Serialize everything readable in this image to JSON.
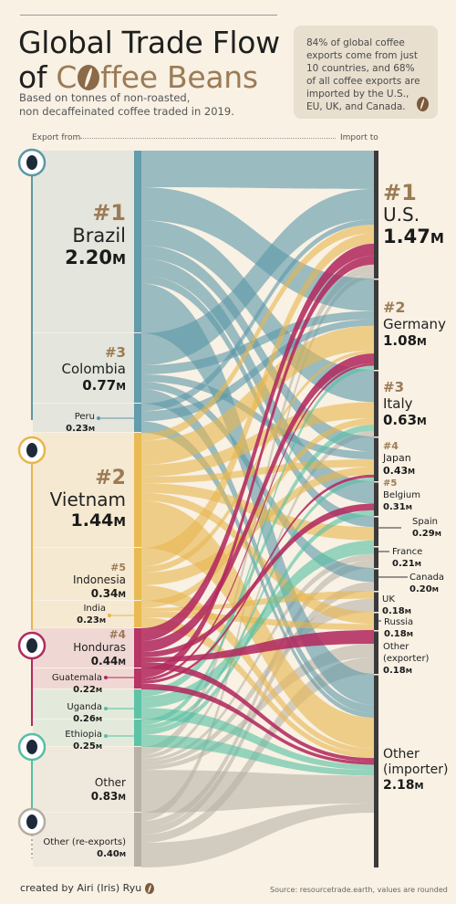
{
  "title": {
    "line1": "Global Trade Flow",
    "line2_prefix": "of ",
    "line2_accent_start": "C",
    "line2_accent_rest": "ffee Beans"
  },
  "subtitle": {
    "line1": "Based on tonnes of non-roasted,",
    "line2": "non decaffeinated coffee traded in 2019."
  },
  "infobox": {
    "text": "84% of global coffee exports come from just 10 countries, and 68% of all coffee exports are imported by the U.S., EU, UK, and Canada."
  },
  "headers": {
    "export": "Export from",
    "import": "Import to"
  },
  "exporters": [
    {
      "rank": "#1",
      "name": "Brazil",
      "value": "2.20",
      "unit": "M"
    },
    {
      "rank": "#3",
      "name": "Colombia",
      "value": "0.77",
      "unit": "M"
    },
    {
      "rank": "",
      "name": "Peru",
      "value": "0.23",
      "unit": "M"
    },
    {
      "rank": "#2",
      "name": "Vietnam",
      "value": "1.44",
      "unit": "M"
    },
    {
      "rank": "#5",
      "name": "Indonesia",
      "value": "0.34",
      "unit": "M"
    },
    {
      "rank": "",
      "name": "India",
      "value": "0.23",
      "unit": "M"
    },
    {
      "rank": "#4",
      "name": "Honduras",
      "value": "0.44",
      "unit": "M"
    },
    {
      "rank": "",
      "name": "Guatemala",
      "value": "0.22",
      "unit": "M"
    },
    {
      "rank": "",
      "name": "Uganda",
      "value": "0.26",
      "unit": "M"
    },
    {
      "rank": "",
      "name": "Ethiopia",
      "value": "0.25",
      "unit": "M"
    },
    {
      "rank": "",
      "name": "Other",
      "value": "0.83",
      "unit": "M"
    },
    {
      "rank": "",
      "name": "Other (re-exports)",
      "value": "0.40",
      "unit": "M"
    }
  ],
  "importers": [
    {
      "rank": "#1",
      "name": "U.S.",
      "value": "1.47",
      "unit": "M"
    },
    {
      "rank": "#2",
      "name": "Germany",
      "value": "1.08",
      "unit": "M"
    },
    {
      "rank": "#3",
      "name": "Italy",
      "value": "0.63",
      "unit": "M"
    },
    {
      "rank": "#4",
      "name": "Japan",
      "value": "0.43",
      "unit": "M"
    },
    {
      "rank": "#5",
      "name": "Belgium",
      "value": "0.31",
      "unit": "M"
    },
    {
      "rank": "",
      "name": "Spain",
      "value": "0.29",
      "unit": "M"
    },
    {
      "rank": "",
      "name": "France",
      "value": "0.21",
      "unit": "M"
    },
    {
      "rank": "",
      "name": "Canada",
      "value": "0.20",
      "unit": "M"
    },
    {
      "rank": "",
      "name": "UK",
      "value": "0.18",
      "unit": "M"
    },
    {
      "rank": "",
      "name": "Russia",
      "value": "0.18",
      "unit": "M"
    },
    {
      "rank": "",
      "name": "Other (exporter)",
      "value": "0.18",
      "unit": "M"
    },
    {
      "rank": "",
      "name": "Other (importer)",
      "value": "2.18",
      "unit": "M"
    }
  ],
  "regions": [
    {
      "name": "south-america",
      "color": "#5b97a8"
    },
    {
      "name": "asia",
      "color": "#e8b64c"
    },
    {
      "name": "central-america",
      "color": "#b22a5e"
    },
    {
      "name": "africa",
      "color": "#55c0a2"
    },
    {
      "name": "other",
      "color": "#b3ada3"
    }
  ],
  "footer": {
    "credit": "created by Airi (Iris) Ryu",
    "source": "Source: resourcetrade.earth, values are rounded"
  }
}
